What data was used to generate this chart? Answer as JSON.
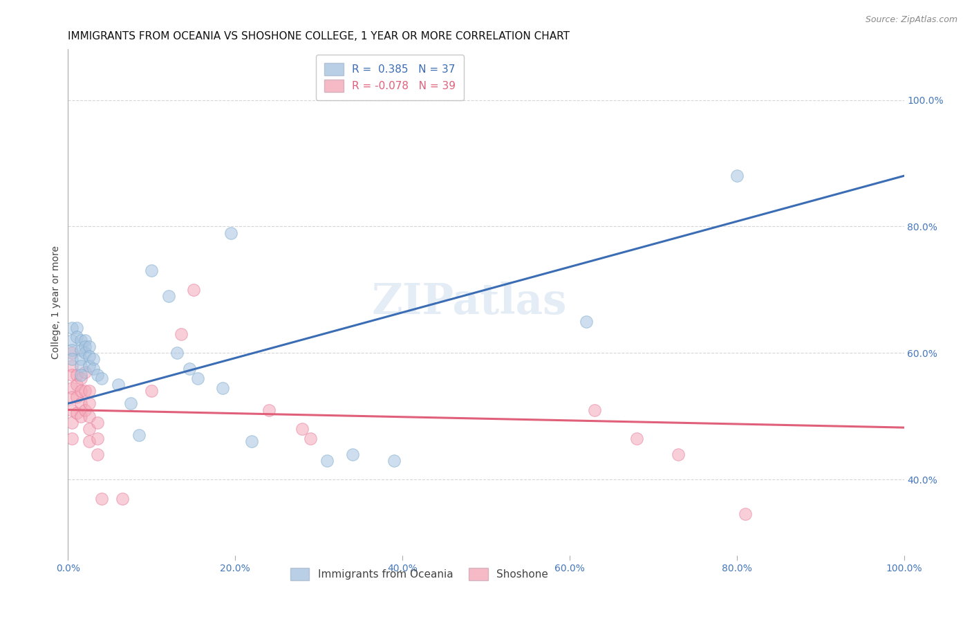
{
  "title": "IMMIGRANTS FROM OCEANIA VS SHOSHONE COLLEGE, 1 YEAR OR MORE CORRELATION CHART",
  "source": "Source: ZipAtlas.com",
  "ylabel": "College, 1 year or more",
  "xlim": [
    0.0,
    1.0
  ],
  "ylim": [
    0.28,
    1.08
  ],
  "xtick_labels": [
    "0.0%",
    "",
    "",
    "",
    "",
    "",
    "",
    "",
    "",
    "",
    "20.0%",
    "",
    "",
    "",
    "",
    "",
    "",
    "",
    "",
    "",
    "40.0%",
    "",
    "",
    "",
    "",
    "",
    "",
    "",
    "",
    "",
    "60.0%",
    "",
    "",
    "",
    "",
    "",
    "",
    "",
    "",
    "",
    "80.0%",
    "",
    "",
    "",
    "",
    "",
    "",
    "",
    "",
    "",
    "100.0%"
  ],
  "xtick_values": [
    0.0,
    0.2,
    0.4,
    0.6,
    0.8,
    1.0
  ],
  "xtick_display": [
    "0.0%",
    "20.0%",
    "40.0%",
    "60.0%",
    "80.0%",
    "100.0%"
  ],
  "ytick_labels": [
    "40.0%",
    "60.0%",
    "80.0%",
    "100.0%"
  ],
  "ytick_values": [
    0.4,
    0.6,
    0.8,
    1.0
  ],
  "legend_R": [
    "R =  0.385",
    "R = -0.078"
  ],
  "legend_N": [
    "N = 37",
    "N = 39"
  ],
  "legend_labels": [
    "Immigrants from Oceania",
    "Shoshone"
  ],
  "blue_color": "#A8C4E0",
  "pink_color": "#F4A8B8",
  "blue_scatter_edge": "#7AAACE",
  "pink_scatter_edge": "#E87A9A",
  "blue_line_color": "#3B6DB5",
  "pink_line_color": "#E0607A",
  "watermark": "ZIPatlas",
  "blue_scatter": [
    [
      0.005,
      0.64
    ],
    [
      0.005,
      0.62
    ],
    [
      0.005,
      0.605
    ],
    [
      0.005,
      0.59
    ],
    [
      0.01,
      0.64
    ],
    [
      0.01,
      0.625
    ],
    [
      0.015,
      0.62
    ],
    [
      0.015,
      0.605
    ],
    [
      0.015,
      0.59
    ],
    [
      0.015,
      0.58
    ],
    [
      0.015,
      0.565
    ],
    [
      0.02,
      0.62
    ],
    [
      0.02,
      0.61
    ],
    [
      0.02,
      0.6
    ],
    [
      0.025,
      0.61
    ],
    [
      0.025,
      0.595
    ],
    [
      0.025,
      0.58
    ],
    [
      0.03,
      0.59
    ],
    [
      0.03,
      0.575
    ],
    [
      0.035,
      0.565
    ],
    [
      0.04,
      0.56
    ],
    [
      0.06,
      0.55
    ],
    [
      0.075,
      0.52
    ],
    [
      0.085,
      0.47
    ],
    [
      0.1,
      0.73
    ],
    [
      0.12,
      0.69
    ],
    [
      0.13,
      0.6
    ],
    [
      0.145,
      0.575
    ],
    [
      0.155,
      0.56
    ],
    [
      0.185,
      0.545
    ],
    [
      0.195,
      0.79
    ],
    [
      0.22,
      0.46
    ],
    [
      0.31,
      0.43
    ],
    [
      0.34,
      0.44
    ],
    [
      0.39,
      0.43
    ],
    [
      0.62,
      0.65
    ],
    [
      0.8,
      0.88
    ]
  ],
  "pink_scatter": [
    [
      0.005,
      0.6
    ],
    [
      0.005,
      0.58
    ],
    [
      0.005,
      0.565
    ],
    [
      0.005,
      0.545
    ],
    [
      0.005,
      0.53
    ],
    [
      0.005,
      0.51
    ],
    [
      0.005,
      0.49
    ],
    [
      0.005,
      0.465
    ],
    [
      0.01,
      0.565
    ],
    [
      0.01,
      0.55
    ],
    [
      0.01,
      0.53
    ],
    [
      0.01,
      0.505
    ],
    [
      0.015,
      0.56
    ],
    [
      0.015,
      0.54
    ],
    [
      0.015,
      0.52
    ],
    [
      0.015,
      0.5
    ],
    [
      0.02,
      0.57
    ],
    [
      0.02,
      0.54
    ],
    [
      0.02,
      0.51
    ],
    [
      0.025,
      0.54
    ],
    [
      0.025,
      0.52
    ],
    [
      0.025,
      0.5
    ],
    [
      0.025,
      0.48
    ],
    [
      0.025,
      0.46
    ],
    [
      0.035,
      0.49
    ],
    [
      0.035,
      0.465
    ],
    [
      0.035,
      0.44
    ],
    [
      0.04,
      0.37
    ],
    [
      0.065,
      0.37
    ],
    [
      0.1,
      0.54
    ],
    [
      0.135,
      0.63
    ],
    [
      0.15,
      0.7
    ],
    [
      0.24,
      0.51
    ],
    [
      0.28,
      0.48
    ],
    [
      0.29,
      0.465
    ],
    [
      0.63,
      0.51
    ],
    [
      0.68,
      0.465
    ],
    [
      0.73,
      0.44
    ],
    [
      0.81,
      0.345
    ]
  ],
  "blue_line": [
    [
      0.0,
      0.52
    ],
    [
      1.0,
      0.88
    ]
  ],
  "pink_line": [
    [
      0.0,
      0.51
    ],
    [
      1.0,
      0.482
    ]
  ],
  "title_fontsize": 11,
  "axis_fontsize": 10,
  "tick_fontsize": 10,
  "legend_fontsize": 11
}
